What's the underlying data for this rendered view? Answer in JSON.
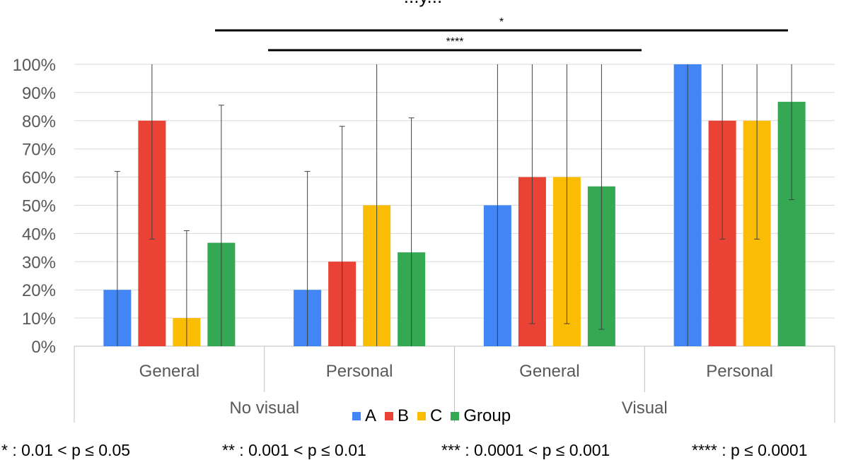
{
  "chart_data": {
    "type": "bar",
    "title": "...y...",
    "y_ticks": [
      "0%",
      "10%",
      "20%",
      "30%",
      "40%",
      "50%",
      "60%",
      "70%",
      "80%",
      "90%",
      "100%"
    ],
    "ylim": [
      0,
      100
    ],
    "groups": [
      {
        "name": "No visual",
        "categories": [
          "General",
          "Personal"
        ]
      },
      {
        "name": "Visual",
        "categories": [
          "General",
          "Personal"
        ]
      }
    ],
    "categories": [
      "General",
      "Personal",
      "General",
      "Personal"
    ],
    "series": [
      {
        "name": "A",
        "color": "#4285F4",
        "values": [
          20,
          20,
          50,
          100
        ],
        "error_top": [
          62,
          62,
          100,
          100
        ]
      },
      {
        "name": "B",
        "color": "#EA4335",
        "values": [
          80,
          30,
          60,
          80
        ],
        "error_top": [
          100,
          78,
          100,
          100
        ],
        "error_bottom": [
          38,
          0,
          8,
          38
        ]
      },
      {
        "name": "C",
        "color": "#FBBC04",
        "values": [
          10,
          50,
          60,
          80
        ],
        "error_top": [
          41,
          100,
          100,
          100
        ],
        "error_bottom": [
          0,
          0,
          8,
          38
        ]
      },
      {
        "name": "Group",
        "color": "#34A853",
        "values": [
          36.7,
          33.3,
          56.7,
          86.7
        ],
        "error_top": [
          85.5,
          81,
          100,
          100
        ],
        "error_bottom": [
          0,
          0,
          6,
          52
        ]
      }
    ],
    "significance": [
      {
        "label": "*"
      },
      {
        "label": "****"
      }
    ]
  },
  "footnotes": [
    "* : 0.01 < p ≤ 0.05",
    "** : 0.001 < p ≤ 0.01",
    "*** : 0.0001 < p ≤ 0.001",
    "**** : p ≤ 0.0001"
  ]
}
